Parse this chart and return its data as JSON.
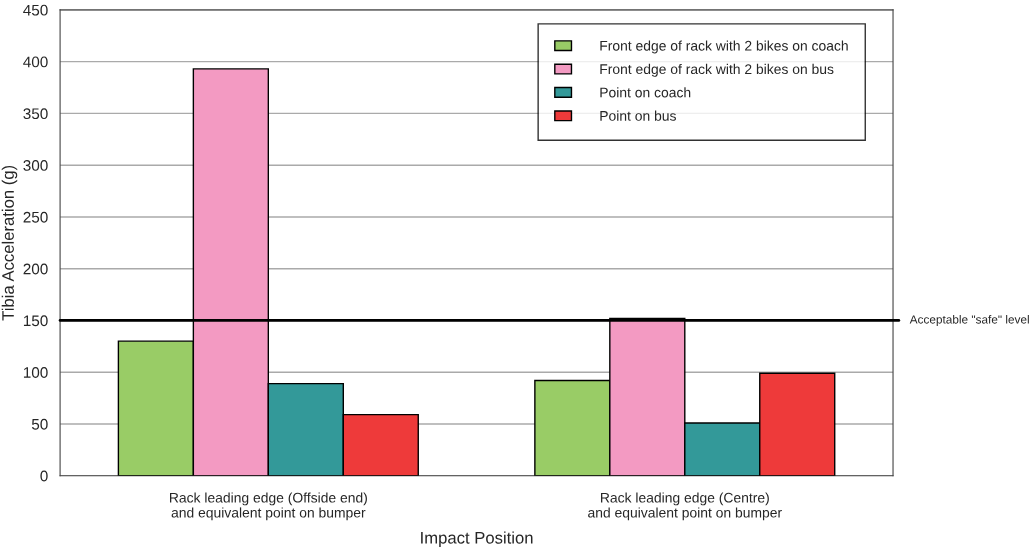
{
  "chart_data": {
    "type": "bar",
    "xlabel": "Impact Position",
    "ylabel": "Tibia Acceleration (g)",
    "categories": [
      "Rack leading edge (Offside end)\nand equivalent point on bumper",
      "Rack leading edge (Centre)\nand equivalent point on bumper"
    ],
    "series": [
      {
        "name": "Front edge of rack with 2 bikes on coach",
        "color": "#99cc66",
        "values": [
          130,
          92
        ]
      },
      {
        "name": "Front edge of rack with 2 bikes on bus",
        "color": "#f39ac2",
        "values": [
          393,
          152
        ]
      },
      {
        "name": "Point on coach",
        "color": "#339999",
        "values": [
          89,
          51
        ]
      },
      {
        "name": "Point on bus",
        "color": "#ee3a3a",
        "values": [
          59,
          99
        ]
      }
    ],
    "ylim": [
      0,
      450
    ],
    "yticks": [
      0,
      50,
      100,
      150,
      200,
      250,
      300,
      350,
      400,
      450
    ],
    "ref_lines": [
      {
        "axis": "y",
        "value": 150,
        "label": "Acceptable \"safe\" level",
        "color": "#000000"
      }
    ],
    "grid": "y",
    "legend": "top right"
  }
}
